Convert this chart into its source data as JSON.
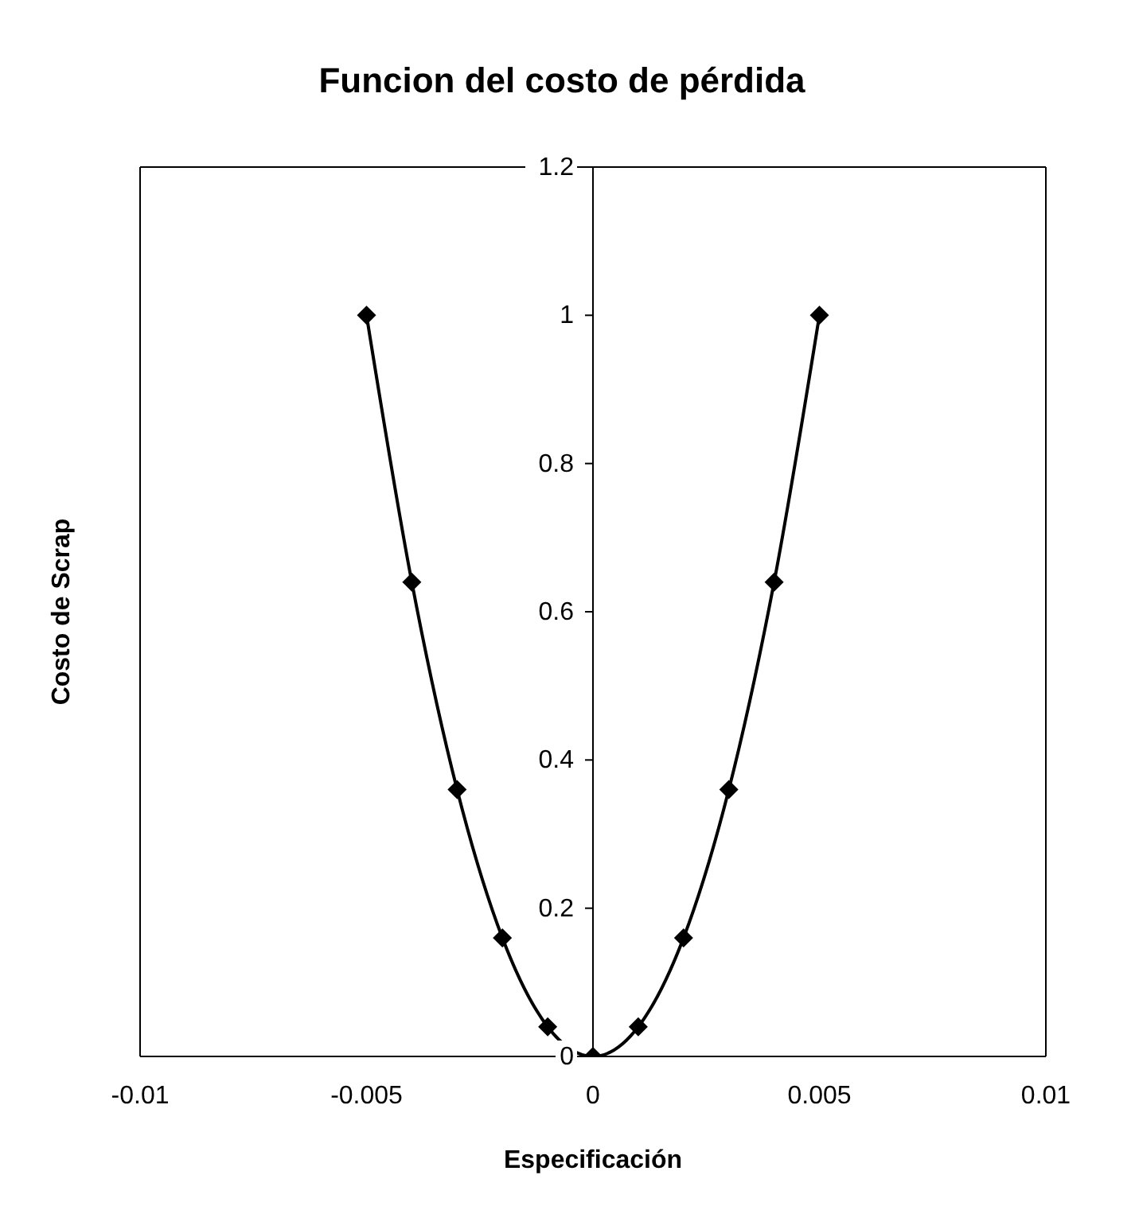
{
  "chart_data": {
    "type": "line",
    "title": "Funcion del costo de pérdida",
    "xlabel": "Especificación",
    "ylabel": "Costo de Scrap",
    "x": [
      -0.005,
      -0.004,
      -0.003,
      -0.002,
      -0.001,
      0,
      0.001,
      0.002,
      0.003,
      0.004,
      0.005
    ],
    "series": [
      {
        "color": "#000000",
        "values": [
          1,
          0.64,
          0.36,
          0.16,
          0.04,
          0,
          0.04,
          0.16,
          0.36,
          0.64,
          1
        ]
      }
    ],
    "xlim": [
      -0.01,
      0.01
    ],
    "xticks": [
      -0.01,
      -0.005,
      0,
      0.005,
      0.01
    ],
    "ylim": [
      0,
      1.2
    ],
    "yticks": [
      0,
      0.2,
      0.4,
      0.6,
      0.8,
      1,
      1.2
    ],
    "grid": false,
    "legend": false,
    "marker": "diamond",
    "line_style": "solid"
  }
}
